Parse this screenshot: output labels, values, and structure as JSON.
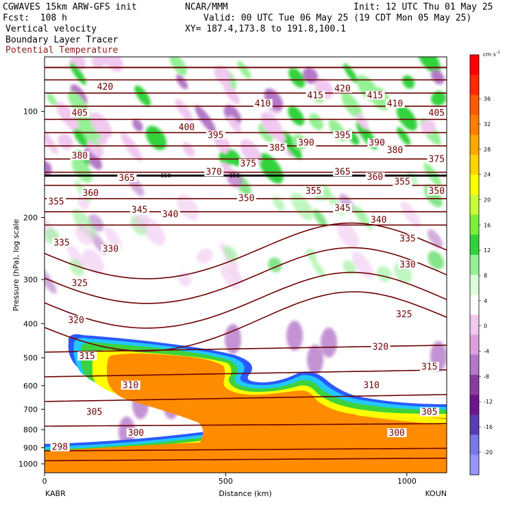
{
  "header": {
    "model": "CGWAVES 15km ARW-GFS init",
    "org": "NCAR/MMM",
    "init": "Init: 12 UTC Thu 01 May 25",
    "fcst": "Fcst:  108 h",
    "valid": "Valid: 00 UTC Tue 06 May 25 (19 CDT Mon 05 May 25)",
    "field1": "Vertical velocity",
    "xy": "XY= 187.4,173.8 to 191.8,100.1",
    "field2": "Boundary Layer Tracer",
    "field3": "Potential Temperature"
  },
  "chart_data": {
    "type": "heatmap",
    "ylabel": "Pressure (hPa), log scale",
    "xlabel": "Distance (km)",
    "x_ticks": [
      0,
      500,
      1000
    ],
    "y_ticks": [
      100,
      200,
      300,
      400,
      500,
      600,
      700,
      800,
      900,
      1000
    ],
    "y_scale": "log",
    "x_endpoints": {
      "left": "KABR",
      "right": "KOUN"
    },
    "colorbar": {
      "unit": "cm s",
      "unit_exp": "-1",
      "ticks": [
        36,
        32,
        28,
        24,
        20,
        16,
        12,
        8,
        4,
        0,
        -4,
        -8,
        -12,
        -16,
        -20
      ],
      "colors": [
        "#ff0000",
        "#ff2a00",
        "#ff5a00",
        "#ff7f00",
        "#ffa800",
        "#ffd400",
        "#ffff00",
        "#c8ff3c",
        "#78f03c",
        "#32d23c",
        "#96f096",
        "#dcffdc",
        "#ffffff",
        "#f0c8f0",
        "#dca0dc",
        "#b478c8",
        "#8c3ca0",
        "#6e148c",
        "#5a3cb4",
        "#7878e6",
        "#9696ff"
      ]
    },
    "theta_contours": [
      298,
      300,
      305,
      310,
      315,
      320,
      325,
      330,
      335,
      340,
      345,
      350,
      355,
      360,
      365,
      370,
      375,
      380,
      385,
      390,
      395,
      400,
      405,
      410,
      415,
      420
    ],
    "contour_labels": [
      {
        "v": "420",
        "x": 145,
        "p": 86
      },
      {
        "v": "405",
        "x": 75,
        "p": 102
      },
      {
        "v": "380",
        "x": 75,
        "p": 135
      },
      {
        "v": "355",
        "x": 10,
        "p": 182
      },
      {
        "v": "360",
        "x": 105,
        "p": 172
      },
      {
        "v": "365",
        "x": 205,
        "p": 156
      },
      {
        "v": "335",
        "x": 25,
        "p": 238
      },
      {
        "v": "330",
        "x": 160,
        "p": 248
      },
      {
        "v": "345",
        "x": 240,
        "p": 192
      },
      {
        "v": "340",
        "x": 325,
        "p": 198
      },
      {
        "v": "325",
        "x": 75,
        "p": 310
      },
      {
        "v": "320",
        "x": 65,
        "p": 395
      },
      {
        "v": "315",
        "x": 95,
        "p": 500
      },
      {
        "v": "310",
        "x": 215,
        "p": 605
      },
      {
        "v": "305",
        "x": 115,
        "p": 720
      },
      {
        "v": "298",
        "x": 20,
        "p": 905
      },
      {
        "v": "300",
        "x": 230,
        "p": 825
      },
      {
        "v": "400",
        "x": 370,
        "p": 112
      },
      {
        "v": "395",
        "x": 450,
        "p": 118
      },
      {
        "v": "370",
        "x": 445,
        "p": 150
      },
      {
        "v": "375",
        "x": 540,
        "p": 142
      },
      {
        "v": "350",
        "x": 535,
        "p": 178
      },
      {
        "v": "410",
        "x": 580,
        "p": 96
      },
      {
        "v": "385",
        "x": 620,
        "p": 128
      },
      {
        "v": "390",
        "x": 700,
        "p": 124
      },
      {
        "v": "355",
        "x": 720,
        "p": 170
      },
      {
        "v": "345",
        "x": 800,
        "p": 190
      },
      {
        "v": "415",
        "x": 725,
        "p": 91
      },
      {
        "v": "420",
        "x": 800,
        "p": 87
      },
      {
        "v": "395",
        "x": 800,
        "p": 118
      },
      {
        "v": "365",
        "x": 800,
        "p": 150
      },
      {
        "v": "415",
        "x": 890,
        "p": 91
      },
      {
        "v": "390",
        "x": 895,
        "p": 124
      },
      {
        "v": "360",
        "x": 890,
        "p": 155
      },
      {
        "v": "340",
        "x": 900,
        "p": 205
      },
      {
        "v": "410",
        "x": 945,
        "p": 96
      },
      {
        "v": "380",
        "x": 945,
        "p": 130
      },
      {
        "v": "355",
        "x": 965,
        "p": 160
      },
      {
        "v": "335",
        "x": 980,
        "p": 232
      },
      {
        "v": "405",
        "x": 1060,
        "p": 102
      },
      {
        "v": "375",
        "x": 1060,
        "p": 138
      },
      {
        "v": "350",
        "x": 1060,
        "p": 170
      },
      {
        "v": "330",
        "x": 980,
        "p": 275
      },
      {
        "v": "325",
        "x": 970,
        "p": 380
      },
      {
        "v": "320",
        "x": 905,
        "p": 470
      },
      {
        "v": "315",
        "x": 1040,
        "p": 535
      },
      {
        "v": "310",
        "x": 880,
        "p": 605
      },
      {
        "v": "305",
        "x": 1040,
        "p": 720
      },
      {
        "v": "300",
        "x": 950,
        "p": 825
      }
    ],
    "tropopause_markers": [
      {
        "v": "150",
        "x": 320,
        "p": 152
      },
      {
        "v": "150",
        "x": 510,
        "p": 152
      }
    ]
  }
}
